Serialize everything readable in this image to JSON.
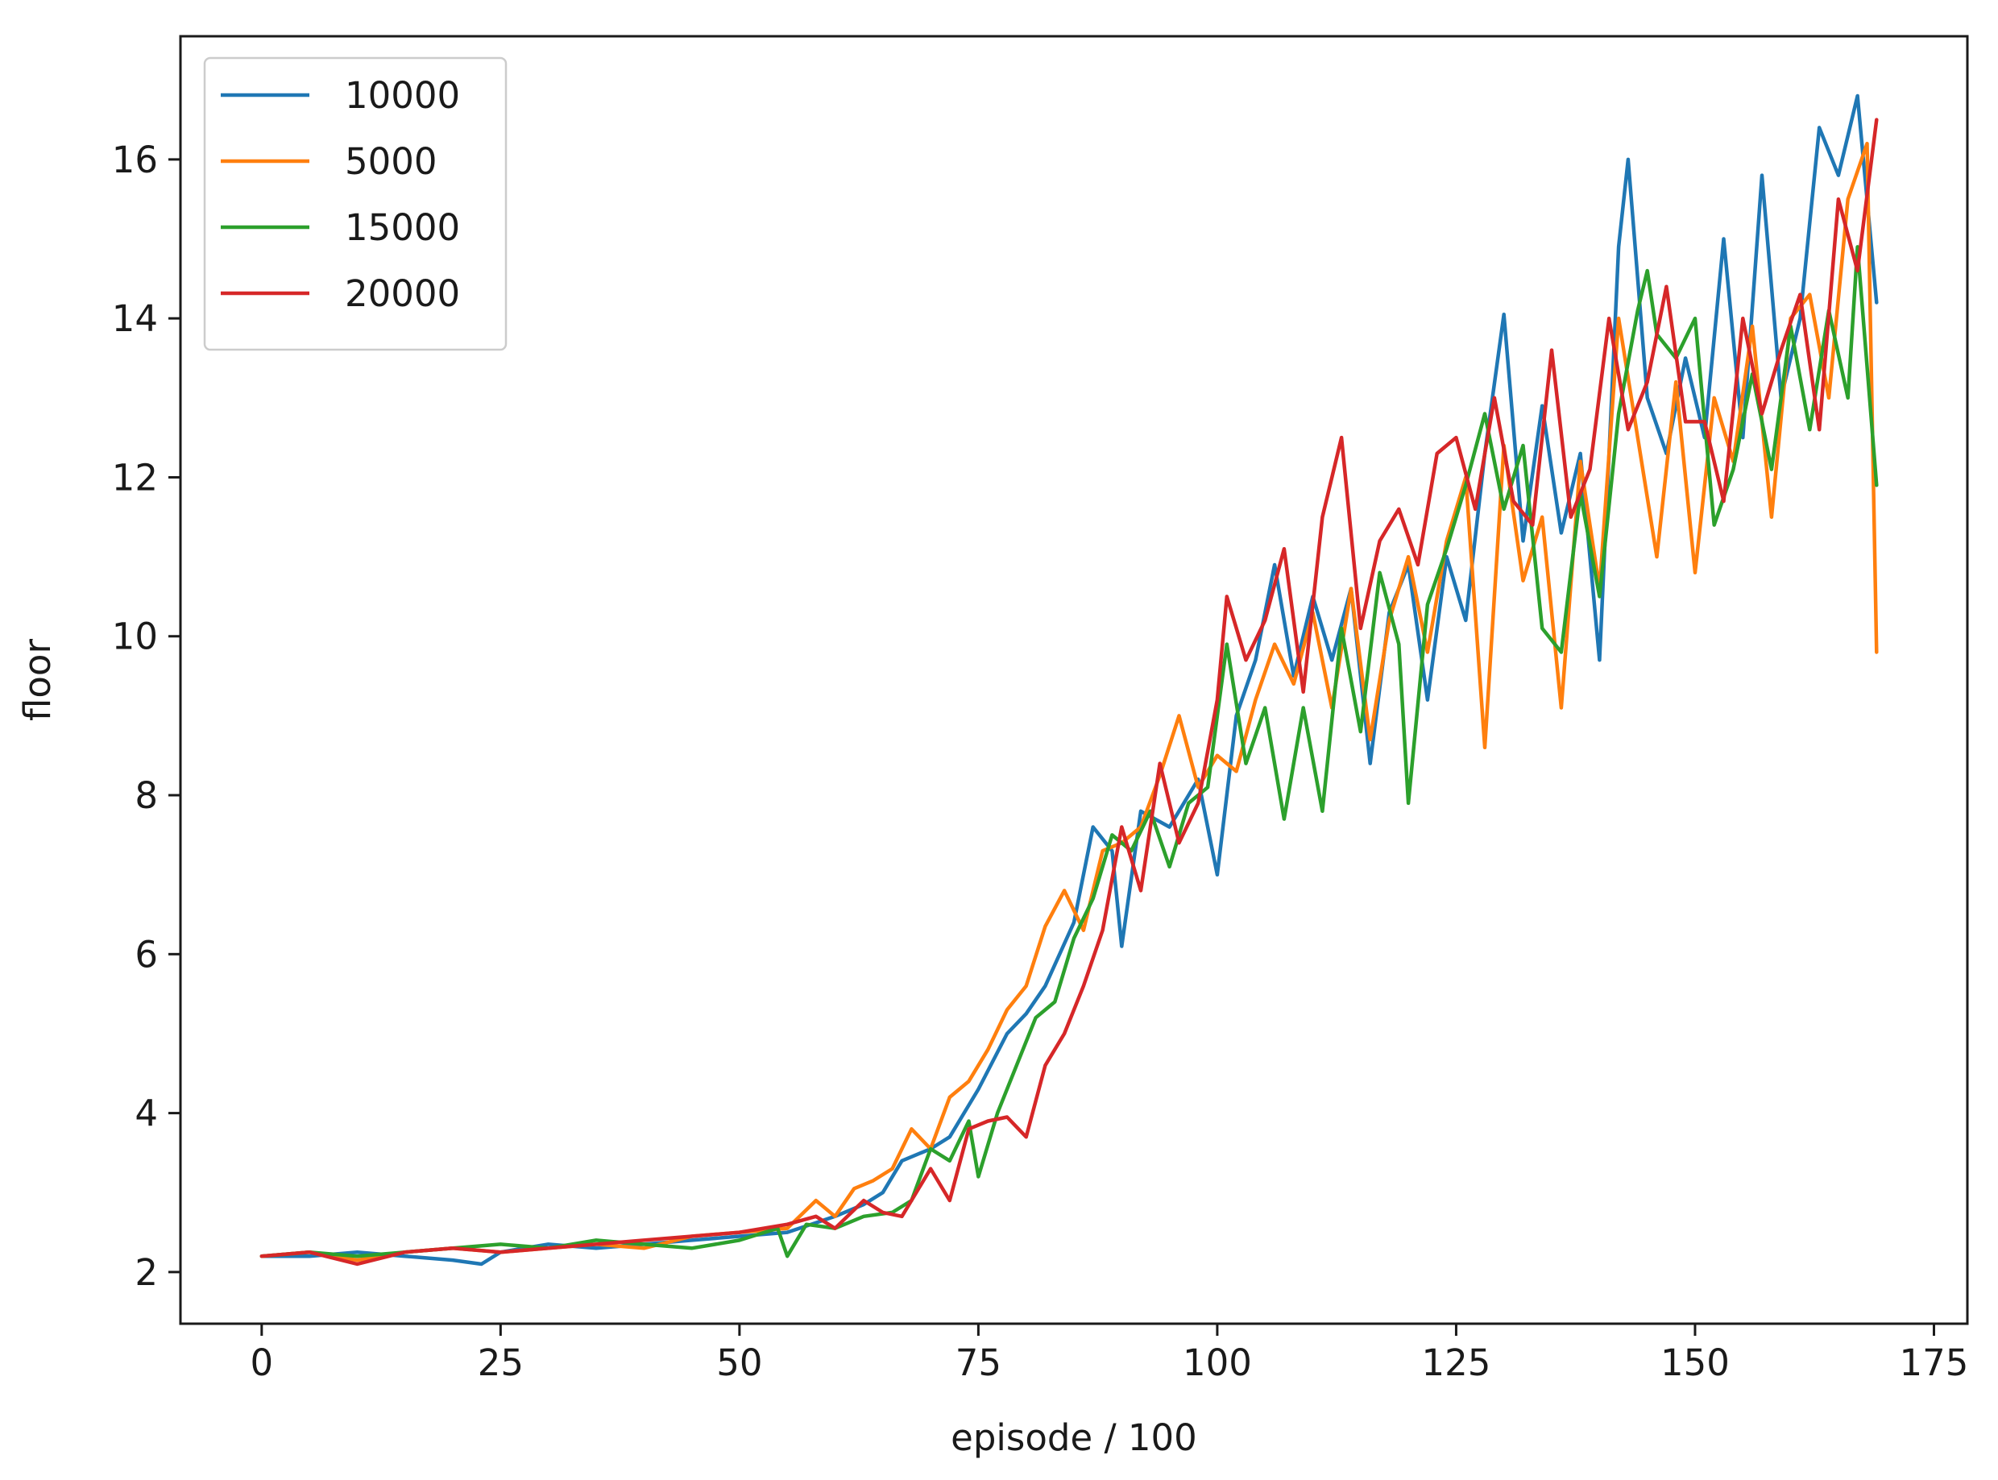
{
  "chart_data": {
    "type": "line",
    "title": "",
    "xlabel": "episode / 100",
    "ylabel": "floor",
    "xlim": [
      -8.5,
      178.5
    ],
    "ylim": [
      1.35,
      17.55
    ],
    "xticks": [
      0,
      25,
      50,
      75,
      100,
      125,
      150,
      175
    ],
    "yticks": [
      2,
      4,
      6,
      8,
      10,
      12,
      14,
      16
    ],
    "grid": false,
    "legend_position": "upper-left",
    "series": [
      {
        "name": "10000",
        "color": "#1f77b4",
        "x": [
          0,
          5,
          10,
          15,
          20,
          23,
          25,
          30,
          35,
          40,
          45,
          50,
          55,
          60,
          63,
          65,
          67,
          70,
          72,
          75,
          78,
          80,
          82,
          85,
          87,
          89,
          90,
          92,
          95,
          98,
          100,
          102,
          104,
          106,
          108,
          110,
          112,
          114,
          116,
          118,
          120,
          122,
          124,
          126,
          128,
          130,
          132,
          134,
          136,
          138,
          140,
          142,
          143,
          145,
          147,
          149,
          151,
          153,
          155,
          157,
          159,
          161,
          163,
          165,
          167,
          169
        ],
        "y": [
          2.2,
          2.2,
          2.25,
          2.2,
          2.15,
          2.1,
          2.25,
          2.35,
          2.3,
          2.35,
          2.4,
          2.45,
          2.5,
          2.7,
          2.85,
          3.0,
          3.4,
          3.55,
          3.7,
          4.3,
          5.0,
          5.25,
          5.6,
          6.4,
          7.6,
          7.3,
          6.1,
          7.8,
          7.6,
          8.2,
          7.0,
          9.0,
          9.7,
          10.9,
          9.5,
          10.5,
          9.7,
          10.6,
          8.4,
          10.3,
          10.9,
          9.2,
          11.0,
          10.2,
          12.3,
          14.05,
          11.2,
          12.9,
          11.3,
          12.3,
          9.7,
          14.9,
          16.0,
          13.0,
          12.3,
          13.5,
          12.5,
          15.0,
          12.5,
          15.8,
          13.0,
          14.0,
          16.4,
          15.8,
          16.8,
          14.2
        ]
      },
      {
        "name": "5000",
        "color": "#ff7f0e",
        "x": [
          0,
          5,
          10,
          15,
          20,
          25,
          30,
          35,
          40,
          45,
          50,
          55,
          58,
          60,
          62,
          64,
          66,
          68,
          70,
          72,
          74,
          76,
          78,
          80,
          82,
          84,
          86,
          88,
          90,
          92,
          94,
          96,
          98,
          100,
          102,
          104,
          106,
          108,
          110,
          112,
          114,
          116,
          118,
          120,
          122,
          124,
          126,
          128,
          130,
          132,
          134,
          136,
          138,
          140,
          142,
          144,
          146,
          148,
          150,
          152,
          154,
          156,
          158,
          160,
          162,
          164,
          166,
          168,
          169
        ],
        "y": [
          2.2,
          2.25,
          2.15,
          2.25,
          2.3,
          2.25,
          2.3,
          2.35,
          2.3,
          2.45,
          2.5,
          2.55,
          2.9,
          2.7,
          3.05,
          3.15,
          3.3,
          3.8,
          3.55,
          4.2,
          4.4,
          4.8,
          5.3,
          5.6,
          6.35,
          6.8,
          6.3,
          7.3,
          7.4,
          7.6,
          8.25,
          9.0,
          8.1,
          8.5,
          8.3,
          9.2,
          9.9,
          9.4,
          10.3,
          9.1,
          10.6,
          8.7,
          10.2,
          11.0,
          9.8,
          11.2,
          12.0,
          8.6,
          12.4,
          10.7,
          11.5,
          9.1,
          12.2,
          10.6,
          14.0,
          12.5,
          11.0,
          13.2,
          10.8,
          13.0,
          12.2,
          13.9,
          11.5,
          14.0,
          14.3,
          13.0,
          15.5,
          16.2,
          9.8
        ]
      },
      {
        "name": "15000",
        "color": "#2ca02c",
        "x": [
          0,
          5,
          10,
          15,
          20,
          25,
          30,
          35,
          40,
          45,
          50,
          54,
          55,
          57,
          60,
          63,
          66,
          68,
          70,
          72,
          74,
          75,
          77,
          79,
          81,
          83,
          85,
          87,
          89,
          91,
          93,
          95,
          97,
          99,
          101,
          103,
          105,
          107,
          109,
          111,
          113,
          115,
          117,
          119,
          120,
          122,
          124,
          126,
          128,
          130,
          132,
          134,
          136,
          138,
          140,
          142,
          144,
          145,
          146,
          148,
          150,
          152,
          154,
          156,
          158,
          160,
          162,
          164,
          166,
          167,
          169
        ],
        "y": [
          2.2,
          2.25,
          2.2,
          2.25,
          2.3,
          2.35,
          2.3,
          2.4,
          2.35,
          2.3,
          2.4,
          2.55,
          2.2,
          2.6,
          2.55,
          2.7,
          2.75,
          2.9,
          3.55,
          3.4,
          3.9,
          3.2,
          4.0,
          4.6,
          5.2,
          5.4,
          6.2,
          6.7,
          7.5,
          7.3,
          7.8,
          7.1,
          7.9,
          8.1,
          9.9,
          8.4,
          9.1,
          7.7,
          9.1,
          7.8,
          10.1,
          8.8,
          10.8,
          9.9,
          7.9,
          10.4,
          11.1,
          11.9,
          12.8,
          11.6,
          12.4,
          10.1,
          9.8,
          11.8,
          10.5,
          12.8,
          14.1,
          14.6,
          13.8,
          13.5,
          14.0,
          11.4,
          12.1,
          13.3,
          12.1,
          13.9,
          12.6,
          14.1,
          13.0,
          14.9,
          11.9
        ]
      },
      {
        "name": "20000",
        "color": "#d62728",
        "x": [
          0,
          5,
          10,
          15,
          20,
          25,
          30,
          35,
          40,
          45,
          50,
          55,
          58,
          60,
          63,
          65,
          67,
          70,
          72,
          74,
          76,
          78,
          80,
          82,
          84,
          86,
          88,
          90,
          92,
          94,
          96,
          98,
          100,
          101,
          103,
          105,
          107,
          109,
          111,
          113,
          115,
          117,
          119,
          121,
          123,
          125,
          127,
          129,
          131,
          133,
          135,
          137,
          139,
          141,
          143,
          145,
          147,
          149,
          151,
          153,
          155,
          157,
          159,
          161,
          163,
          165,
          167,
          169
        ],
        "y": [
          2.2,
          2.25,
          2.1,
          2.25,
          2.3,
          2.25,
          2.3,
          2.35,
          2.4,
          2.45,
          2.5,
          2.6,
          2.7,
          2.55,
          2.9,
          2.75,
          2.7,
          3.3,
          2.9,
          3.8,
          3.9,
          3.95,
          3.7,
          4.6,
          5.0,
          5.6,
          6.3,
          7.6,
          6.8,
          8.4,
          7.4,
          7.9,
          9.2,
          10.5,
          9.7,
          10.2,
          11.1,
          9.3,
          11.5,
          12.5,
          10.1,
          11.2,
          11.6,
          10.9,
          12.3,
          12.5,
          11.6,
          13.0,
          11.7,
          11.4,
          13.6,
          11.5,
          12.1,
          14.0,
          12.6,
          13.2,
          14.4,
          12.7,
          12.7,
          11.7,
          14.0,
          12.8,
          13.6,
          14.3,
          12.6,
          15.5,
          14.6,
          16.5
        ]
      }
    ]
  }
}
